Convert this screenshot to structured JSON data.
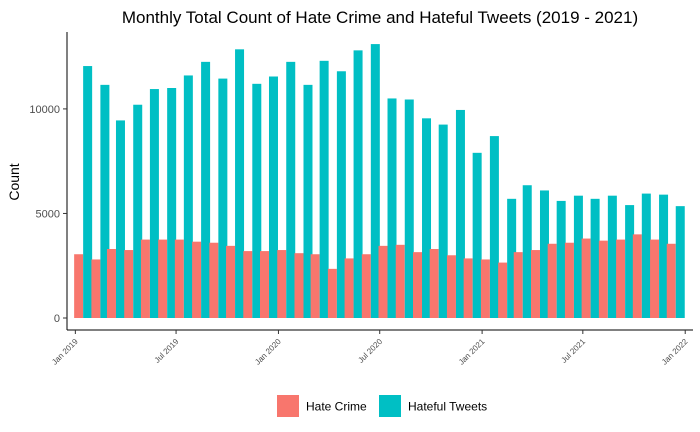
{
  "chart_data": {
    "type": "bar",
    "title": "Monthly Total Count of Hate Crime and Hateful Tweets (2019 - 2021)",
    "xlabel": "",
    "ylabel": "Count",
    "ylim": [
      0,
      13200
    ],
    "yticks": [
      0,
      5000,
      10000
    ],
    "ytick_labels": [
      "0",
      "5000",
      "10000"
    ],
    "xticks": [
      "Jan 2019",
      "Jul 2019",
      "Jan 2020",
      "Jul 2020",
      "Jan 2021",
      "Jul 2021",
      "Jan 2022"
    ],
    "x_range": [
      "2018-12-17",
      "2022-01-15"
    ],
    "grid": false,
    "legend_position": "bottom",
    "categories": [
      "2019-01",
      "2019-02",
      "2019-03",
      "2019-04",
      "2019-05",
      "2019-06",
      "2019-07",
      "2019-08",
      "2019-09",
      "2019-10",
      "2019-11",
      "2019-12",
      "2020-01",
      "2020-02",
      "2020-03",
      "2020-04",
      "2020-05",
      "2020-06",
      "2020-07",
      "2020-08",
      "2020-09",
      "2020-10",
      "2020-11",
      "2020-12",
      "2021-01",
      "2021-02",
      "2021-03",
      "2021-04",
      "2021-05",
      "2021-06",
      "2021-07",
      "2021-08",
      "2021-09",
      "2021-10",
      "2021-11",
      "2021-12"
    ],
    "series": [
      {
        "name": "Hate Crime",
        "color": "#F8766D",
        "values": [
          3050,
          2800,
          3300,
          3250,
          3750,
          3750,
          3750,
          3650,
          3600,
          3450,
          3200,
          3200,
          3250,
          3100,
          3050,
          2350,
          2850,
          3050,
          3450,
          3500,
          3150,
          3300,
          3000,
          2850,
          2800,
          2650,
          3150,
          3250,
          3550,
          3600,
          3800,
          3700,
          3750,
          4000,
          3750,
          3550
        ]
      },
      {
        "name": "Hateful Tweets",
        "color": "#00BFC4",
        "values": [
          12050,
          11150,
          9450,
          10200,
          10950,
          11000,
          11600,
          12250,
          11450,
          12850,
          11200,
          11550,
          12250,
          11150,
          12300,
          11800,
          12800,
          13100,
          10500,
          10450,
          9550,
          9250,
          9950,
          7900,
          8700,
          5700,
          6350,
          6100,
          5600,
          5850,
          5700,
          5850,
          5400,
          5950,
          5900,
          5350
        ]
      }
    ]
  }
}
